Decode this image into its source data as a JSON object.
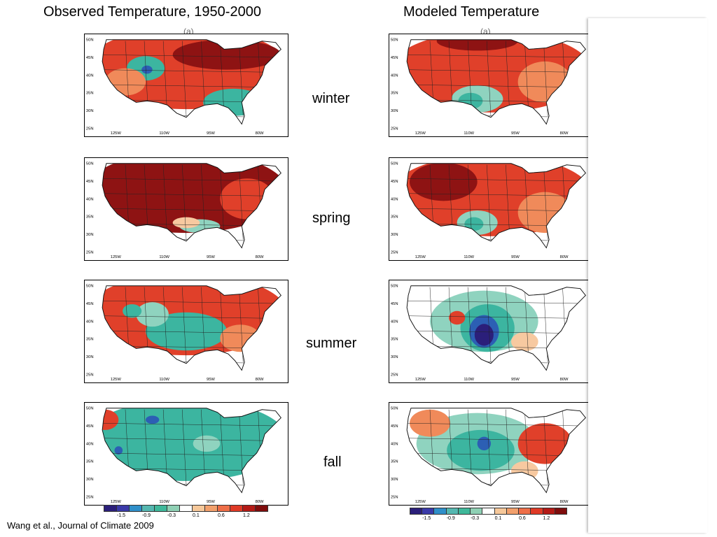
{
  "titles": {
    "observed": "Observed Temperature, 1950-2000",
    "modeled": "Modeled Temperature"
  },
  "panel_tags": {
    "observed": "(a)",
    "modeled": "(a)"
  },
  "seasons": [
    "winter",
    "spring",
    "summer",
    "fall"
  ],
  "lat_ticks": [
    "50N",
    "45N",
    "40N",
    "35N",
    "30N",
    "25N"
  ],
  "lon_ticks": [
    "125W",
    "110W",
    "95W",
    "80W"
  ],
  "colorbar": {
    "labels": [
      "-1.5",
      "-0.9",
      "-0.3",
      "0.1",
      "0.6",
      "1.2"
    ],
    "colors": [
      "#2b1f7a",
      "#3a3aa8",
      "#2f8fc9",
      "#55b7b0",
      "#3fb89a",
      "#8fd0b4",
      "#ffffff",
      "#f6c89a",
      "#f2a06c",
      "#ee6e48",
      "#df3a26",
      "#b41a16",
      "#7f0d0d"
    ]
  },
  "colors": {
    "deep_red": "#8e1313",
    "red": "#e0402a",
    "orange": "#f08a5a",
    "light": "#f7c9a0",
    "teal": "#3cb5a0",
    "lightteal": "#8fd3bf",
    "blue": "#2c5fb4",
    "navy": "#2b1f7a"
  },
  "citation": "Wang et al., Journal of Climate 2009"
}
